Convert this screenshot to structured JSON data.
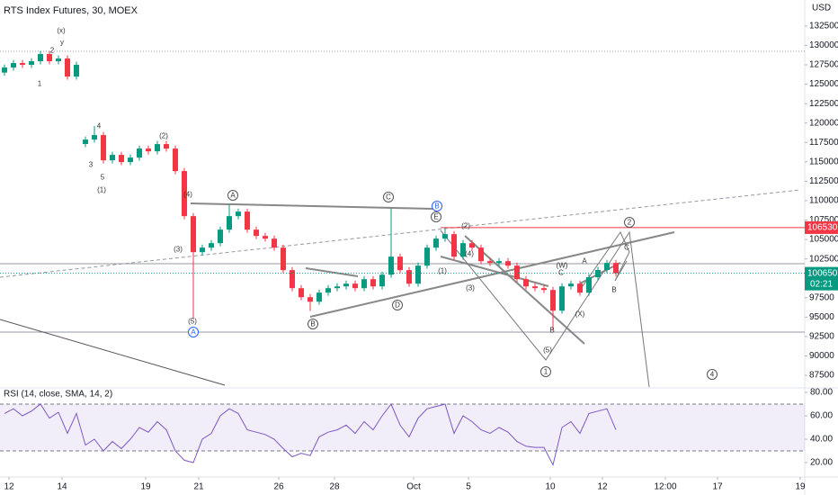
{
  "chart_data": [
    {
      "type": "candlestick",
      "title": "RTS Index Futures, 30, MOEX",
      "y_unit": "USD",
      "open": [
        126500,
        127150,
        127730,
        127500,
        127960,
        128890,
        127960,
        128310,
        125990,
        117300,
        117870,
        118450,
        115200,
        115900,
        114970,
        115550,
        116710,
        116360,
        117290,
        116710,
        113810,
        108010,
        103370,
        103950,
        104530,
        106270,
        108010,
        108590,
        106270,
        105460,
        105110,
        103950,
        101050,
        98730,
        97570,
        96990,
        98150,
        98730,
        98960,
        99310,
        98730,
        99890,
        98960,
        100470,
        102790,
        101050,
        99310,
        101630,
        103950,
        105110,
        105690,
        102790,
        104530,
        103950,
        102210,
        101980,
        102210,
        101630,
        99890,
        98960,
        98730,
        98500,
        95830,
        98960,
        99310,
        98150,
        100140,
        101070,
        101980
      ],
      "high": [
        127550,
        128130,
        128130,
        128360,
        129290,
        129290,
        128710,
        128710,
        127900,
        118270,
        119600,
        118850,
        116300,
        116300,
        115950,
        117110,
        117110,
        117690,
        117690,
        117110,
        114210,
        108410,
        104350,
        104930,
        106670,
        109500,
        108990,
        108990,
        106670,
        105860,
        105510,
        104350,
        101450,
        99130,
        97970,
        98550,
        99130,
        99360,
        99710,
        99710,
        100290,
        100290,
        100870,
        109000,
        103190,
        101450,
        102030,
        104350,
        105510,
        106500,
        106090,
        104930,
        104930,
        104350,
        102610,
        102610,
        102610,
        102030,
        100290,
        99360,
        99130,
        98900,
        99360,
        99710,
        99710,
        100540,
        101470,
        102380,
        102380
      ],
      "low": [
        126100,
        126750,
        127100,
        127100,
        127560,
        127560,
        127560,
        125590,
        125590,
        116900,
        117470,
        114800,
        114800,
        114570,
        114570,
        115150,
        115960,
        115960,
        116310,
        113410,
        107610,
        94700,
        102970,
        103550,
        104130,
        105870,
        107610,
        105870,
        105060,
        104710,
        103550,
        100650,
        98330,
        97170,
        95800,
        96590,
        97750,
        98330,
        98560,
        98330,
        98330,
        98560,
        98560,
        100070,
        100650,
        98910,
        98910,
        101230,
        103550,
        104710,
        102390,
        102390,
        103550,
        101810,
        101580,
        101580,
        101230,
        99490,
        98560,
        98330,
        98100,
        93300,
        95430,
        98560,
        97750,
        97750,
        99740,
        100670,
        100250
      ],
      "close": [
        127150,
        127730,
        127500,
        127960,
        128890,
        127960,
        128310,
        125990,
        127500,
        117870,
        118450,
        115200,
        115900,
        114970,
        115550,
        116710,
        116360,
        117290,
        116710,
        113810,
        108010,
        103370,
        103950,
        104530,
        106270,
        108010,
        108590,
        106270,
        105460,
        105110,
        103950,
        101050,
        98730,
        97570,
        96990,
        98150,
        98730,
        98960,
        99310,
        98730,
        99890,
        98960,
        100470,
        102790,
        101050,
        99310,
        101630,
        103950,
        105110,
        105690,
        102790,
        104530,
        103950,
        102210,
        101980,
        102210,
        101630,
        99890,
        98960,
        98730,
        98500,
        95830,
        98960,
        99310,
        98150,
        100140,
        101070,
        101980,
        100650
      ],
      "up_color": "#089981",
      "down_color": "#f23645",
      "xlim": [
        -0.5,
        89
      ],
      "ylim": [
        86000,
        135850
      ],
      "yticks": [
        87500,
        90000,
        92500,
        95000,
        97500,
        100000,
        102500,
        105000,
        107500,
        110000,
        112500,
        115000,
        117500,
        120000,
        122500,
        125000,
        127500,
        130000,
        132500
      ],
      "alert_level": 106530,
      "alert_color": "#f23645",
      "last_price": 100650,
      "countdown": "02:21",
      "annotations": [
        "(x)",
        "y",
        "2",
        "1",
        "4",
        "3",
        "5",
        "(1)",
        "(2)",
        "(4)",
        "(3)",
        "(5)",
        "A",
        "C",
        "B",
        "E",
        "(2)",
        "(4)",
        "(1)",
        "(3)",
        "D",
        "B",
        "A",
        "(W)",
        "A",
        "C",
        "(X)",
        "B",
        "(5)",
        "1",
        "2",
        "C",
        "B",
        "4"
      ]
    },
    {
      "type": "line",
      "title": "RSI (14, close, SMA, 14, 2)",
      "color": "#7e57c2",
      "values": [
        62,
        66,
        60,
        64,
        70,
        58,
        63,
        45,
        62,
        35,
        40,
        30,
        38,
        32,
        40,
        50,
        46,
        55,
        48,
        30,
        22,
        20,
        40,
        45,
        60,
        66,
        62,
        48,
        46,
        44,
        40,
        32,
        25,
        28,
        26,
        42,
        46,
        48,
        52,
        45,
        55,
        48,
        60,
        70,
        52,
        42,
        58,
        66,
        68,
        70,
        45,
        60,
        55,
        48,
        45,
        50,
        46,
        38,
        34,
        33,
        33,
        18,
        50,
        55,
        45,
        62,
        64,
        66,
        48
      ],
      "xlim": [
        -0.5,
        89
      ],
      "ylim": [
        7.7,
        83.1
      ],
      "bands": [
        30,
        70
      ],
      "yticks": [
        {
          "value": 80,
          "label": "80.00"
        },
        {
          "value": 60,
          "label": "60.00"
        },
        {
          "value": 40,
          "label": "40.00"
        },
        {
          "value": 20,
          "label": "20.00"
        }
      ],
      "xticks": [
        {
          "value": 0.5,
          "label": "12"
        },
        {
          "value": 6.4,
          "label": "14"
        },
        {
          "value": 15.7,
          "label": "19"
        },
        {
          "value": 21.6,
          "label": "21"
        },
        {
          "value": 30.5,
          "label": "26"
        },
        {
          "value": 36.7,
          "label": "28"
        },
        {
          "value": 45.5,
          "label": "Oct"
        },
        {
          "value": 51.6,
          "label": "5"
        },
        {
          "value": 60.7,
          "label": "10"
        },
        {
          "value": 66.5,
          "label": "12"
        },
        {
          "value": 73.5,
          "label": "12:00"
        },
        {
          "value": 79.3,
          "label": "17"
        },
        {
          "value": 88.5,
          "label": "19"
        }
      ]
    }
  ]
}
